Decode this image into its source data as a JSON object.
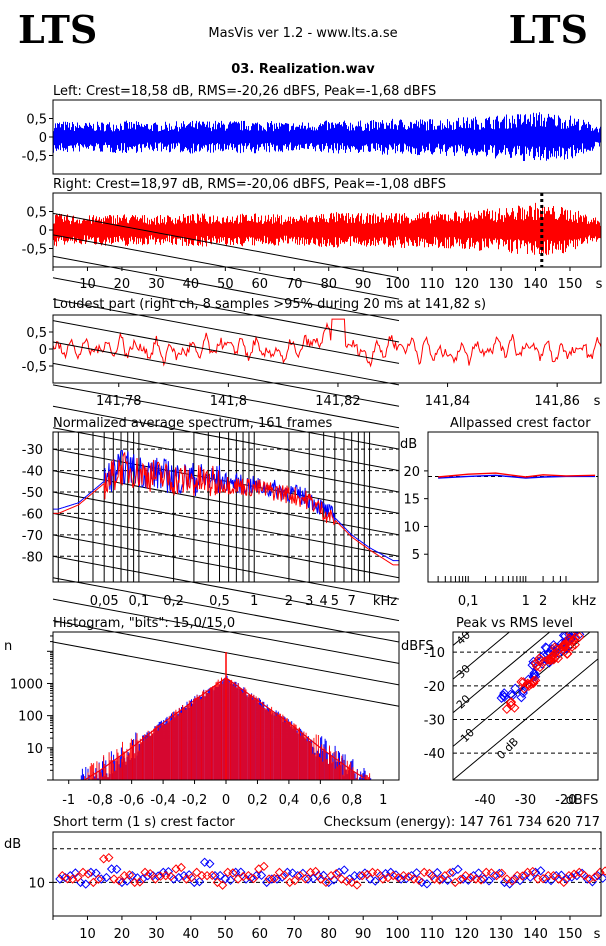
{
  "header": {
    "logo_left": "LTS",
    "logo_right": "LTS",
    "app_title": "MasVis ver 1.2 - www.lts.a.se",
    "file_name": "03. Realization.wav"
  },
  "colors": {
    "left": "#0000ff",
    "right": "#ff0000",
    "grid": "#000000"
  },
  "panels": {
    "left": {
      "title": "Left: Crest=18,58 dB, RMS=-20,26 dBFS, Peak=-1,68 dBFS",
      "yticks": [
        "0,5",
        "0",
        "-0,5"
      ]
    },
    "right": {
      "title": "Right: Crest=18,97 dB, RMS=-20,06 dBFS, Peak=-1,08 dBFS",
      "yticks": [
        "0,5",
        "0",
        "-0,5"
      ],
      "xticks": [
        "10",
        "20",
        "30",
        "40",
        "50",
        "60",
        "70",
        "80",
        "90",
        "100",
        "110",
        "120",
        "130",
        "140",
        "150"
      ],
      "xunit": "s"
    },
    "loudest": {
      "title": "Loudest part (right ch, 8 samples >95% during 20 ms at 141,82 s)",
      "yticks": [
        "0,5",
        "0",
        "-0,5"
      ],
      "xticks": [
        "141,78",
        "141,8",
        "141,82",
        "141,84",
        "141,86"
      ],
      "xunit": "s"
    },
    "spectrum": {
      "title": "Normalized average spectrum, 161 frames",
      "yunit": "dB",
      "yticks": [
        "-30",
        "-40",
        "-50",
        "-60",
        "-70",
        "-80"
      ],
      "xticks": [
        "0,05",
        "0,1",
        "0,2",
        "0,5",
        "1",
        "2",
        "3",
        "4",
        "5",
        "7"
      ],
      "xunit": "kHz"
    },
    "allpass": {
      "title": "Allpassed crest factor",
      "yunit": "dB",
      "yticks": [
        "20",
        "15",
        "10",
        "5"
      ],
      "xticks": [
        "0,1",
        "1",
        "2"
      ],
      "xunit": "kHz"
    },
    "histogram": {
      "title": "Histogram, \"bits\": 15,0/15,0",
      "yunit": "n",
      "yticks": [
        "1000",
        "100",
        "10"
      ],
      "xticks": [
        "-1",
        "-0,8",
        "-0,6",
        "-0,4",
        "-0,2",
        "0",
        "0,2",
        "0,4",
        "0,6",
        "0,8",
        "1"
      ]
    },
    "pvr": {
      "title": "Peak vs RMS level",
      "yunit": "dBFS",
      "yticks": [
        "-10",
        "-20",
        "-30",
        "-40"
      ],
      "xticks": [
        "-40",
        "-30",
        "-20"
      ],
      "xunit": "dBFS",
      "line_labels": [
        "40",
        "30",
        "20",
        "10",
        "0 dB"
      ]
    },
    "crest": {
      "title": "Short term (1 s) crest factor",
      "checksum": "Checksum (energy):   147 761 734 620 717",
      "yunit": "dB",
      "yticks": [
        "10"
      ],
      "xticks": [
        "10",
        "20",
        "30",
        "40",
        "50",
        "60",
        "70",
        "80",
        "90",
        "100",
        "110",
        "120",
        "130",
        "140",
        "150"
      ],
      "xunit": "s"
    }
  },
  "chart_data": [
    {
      "type": "area",
      "title": "Left: Crest=18,58 dB, RMS=-20,26 dBFS, Peak=-1,68 dBFS",
      "ylim": [
        -1,
        1
      ],
      "xlim": [
        0,
        159
      ],
      "envelope_x": [
        0,
        10,
        20,
        30,
        40,
        50,
        60,
        70,
        80,
        90,
        100,
        110,
        120,
        130,
        140,
        150,
        159
      ],
      "envelope_y": [
        0.45,
        0.4,
        0.45,
        0.4,
        0.45,
        0.45,
        0.45,
        0.4,
        0.45,
        0.45,
        0.5,
        0.5,
        0.55,
        0.6,
        0.7,
        0.6,
        0.3
      ]
    },
    {
      "type": "area",
      "title": "Right: Crest=18,97 dB, RMS=-20,06 dBFS, Peak=-1,08 dBFS",
      "ylim": [
        -1,
        1
      ],
      "xlim": [
        0,
        159
      ],
      "envelope_x": [
        0,
        10,
        20,
        30,
        40,
        50,
        60,
        70,
        80,
        90,
        100,
        110,
        120,
        130,
        140,
        150,
        159
      ],
      "envelope_y": [
        0.45,
        0.4,
        0.45,
        0.4,
        0.45,
        0.45,
        0.45,
        0.4,
        0.5,
        0.45,
        0.5,
        0.5,
        0.55,
        0.6,
        0.75,
        0.6,
        0.3
      ],
      "marker_at_s": 141.82
    },
    {
      "type": "line",
      "title": "Loudest part (right ch, 8 samples >95% during 20 ms at 141,82 s)",
      "xlim": [
        141.768,
        141.868
      ],
      "ylim": [
        -1,
        1
      ],
      "x": [
        141.768,
        141.775,
        141.78,
        141.79,
        141.8,
        141.81,
        141.815,
        141.82,
        141.825,
        141.83,
        141.84,
        141.85,
        141.86,
        141.868
      ],
      "y": [
        0.1,
        0.0,
        0.15,
        -0.2,
        0.2,
        -0.3,
        0.3,
        0.9,
        -0.4,
        0.3,
        -0.3,
        0.2,
        -0.2,
        0.0
      ]
    },
    {
      "type": "line",
      "title": "Normalized average spectrum, 161 frames",
      "ylabel": "dB",
      "ylim": [
        -90,
        -20
      ],
      "x": [
        0.02,
        0.03,
        0.05,
        0.07,
        0.1,
        0.2,
        0.5,
        1,
        2,
        3,
        5,
        7,
        10,
        16
      ],
      "series": [
        {
          "values": [
            -58,
            -55,
            -45,
            -38,
            -40,
            -43,
            -45,
            -47,
            -50,
            -53,
            -62,
            -70,
            -76,
            -82
          ]
        },
        {
          "values": [
            -60,
            -56,
            -46,
            -39,
            -41,
            -44,
            -46,
            -48,
            -51,
            -54,
            -63,
            -71,
            -77,
            -84
          ]
        }
      ]
    },
    {
      "type": "line",
      "title": "Allpassed crest factor",
      "ylabel": "dB",
      "ylim": [
        0,
        27
      ],
      "x": [
        0.03,
        0.1,
        0.3,
        1,
        2,
        5,
        16
      ],
      "series": [
        {
          "values": [
            18.7,
            19.0,
            19.2,
            18.7,
            18.9,
            19.0,
            19.0
          ]
        },
        {
          "values": [
            18.9,
            19.4,
            19.6,
            18.9,
            19.3,
            19.1,
            19.2
          ]
        }
      ]
    },
    {
      "type": "line",
      "title": "Histogram, \"bits\": 15,0/15,0",
      "ylabel": "n",
      "xlim": [
        -1.1,
        1.1
      ],
      "x": [
        -0.9,
        -0.8,
        -0.6,
        -0.4,
        -0.2,
        0,
        0.2,
        0.4,
        0.6,
        0.8,
        0.9
      ],
      "series": [
        {
          "values": [
            1,
            2,
            10,
            60,
            300,
            1500,
            300,
            60,
            10,
            2,
            1
          ]
        },
        {
          "values": [
            1,
            2,
            10,
            60,
            300,
            1500,
            300,
            60,
            10,
            2,
            1
          ]
        }
      ]
    },
    {
      "type": "scatter",
      "title": "Peak vs RMS level",
      "xlabel": "dBFS",
      "ylabel": "dBFS",
      "xlim": [
        -48,
        -12
      ],
      "ylim": [
        -48,
        -4
      ],
      "series": [
        {
          "points": [
            [
              -35,
              -23
            ],
            [
              -32,
              -22
            ],
            [
              -28,
              -17
            ],
            [
              -27,
              -14
            ],
            [
              -25,
              -12
            ],
            [
              -24,
              -10
            ],
            [
              -22,
              -9
            ],
            [
              -21,
              -8
            ],
            [
              -20,
              -7
            ],
            [
              -19,
              -6
            ],
            [
              -18,
              -5
            ]
          ]
        },
        {
          "points": [
            [
              -34,
              -26
            ],
            [
              -30,
              -20
            ],
            [
              -28,
              -19
            ],
            [
              -26,
              -13
            ],
            [
              -24,
              -12
            ],
            [
              -23,
              -11
            ],
            [
              -22,
              -10
            ],
            [
              -21,
              -9
            ],
            [
              -20,
              -8
            ],
            [
              -19,
              -7
            ],
            [
              -18,
              -6
            ]
          ]
        }
      ]
    },
    {
      "type": "scatter",
      "title": "Short term (1 s) crest factor",
      "ylabel": "dB",
      "xlim": [
        0,
        159
      ],
      "ylim": [
        0,
        25
      ],
      "x": [
        2,
        5,
        8,
        11,
        14,
        17,
        20,
        23,
        26,
        29,
        32,
        35,
        38,
        41,
        44,
        47,
        50,
        53,
        56,
        59,
        62,
        65,
        68,
        71,
        74,
        77,
        80,
        83,
        86,
        89,
        92,
        95,
        98,
        101,
        104,
        107,
        110,
        113,
        116,
        119,
        122,
        125,
        128,
        131,
        134,
        137,
        140,
        143,
        146,
        149,
        152,
        155,
        158
      ],
      "series": [
        {
          "values": [
            11,
            12,
            10,
            13,
            11,
            14,
            10,
            12,
            11,
            12,
            13,
            11,
            12,
            10,
            16,
            12,
            11,
            13,
            11,
            12,
            10,
            11,
            13,
            12,
            11,
            12,
            10,
            13,
            11,
            12,
            11,
            12,
            13,
            11,
            12,
            10,
            12,
            11,
            13,
            11,
            12,
            11,
            12,
            10,
            11,
            12,
            13,
            11,
            12,
            11,
            12,
            11,
            12
          ]
        },
        {
          "values": [
            12,
            11,
            13,
            10,
            17,
            11,
            12,
            10,
            13,
            11,
            12,
            14,
            11,
            13,
            12,
            10,
            13,
            11,
            12,
            14,
            11,
            13,
            10,
            12,
            13,
            11,
            12,
            11,
            10,
            12,
            13,
            11,
            12,
            12,
            11,
            13,
            11,
            12,
            10,
            12,
            11,
            13,
            12,
            11,
            12,
            13,
            11,
            12,
            11,
            12,
            13,
            11,
            13
          ]
        }
      ]
    }
  ]
}
